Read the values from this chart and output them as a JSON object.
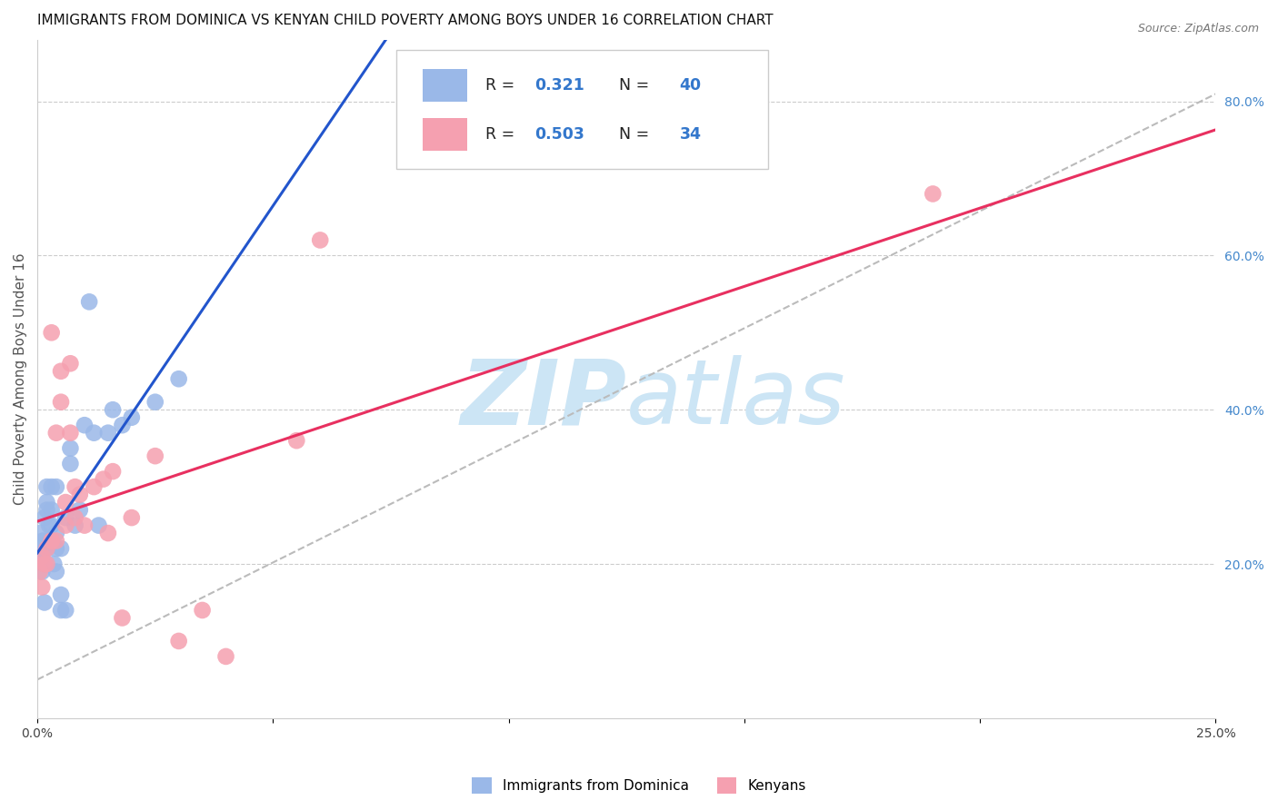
{
  "title": "IMMIGRANTS FROM DOMINICA VS KENYAN CHILD POVERTY AMONG BOYS UNDER 16 CORRELATION CHART",
  "source": "Source: ZipAtlas.com",
  "ylabel_left": "Child Poverty Among Boys Under 16",
  "xmin": 0.0,
  "xmax": 0.25,
  "ymin": 0.0,
  "ymax": 0.88,
  "xticks": [
    0.0,
    0.05,
    0.1,
    0.15,
    0.2,
    0.25
  ],
  "xticklabels": [
    "0.0%",
    "",
    "",
    "",
    "",
    "25.0%"
  ],
  "yticks_right": [
    0.2,
    0.4,
    0.6,
    0.8
  ],
  "ytick_right_labels": [
    "20.0%",
    "40.0%",
    "60.0%",
    "80.0%"
  ],
  "series1_color": "#9ab8e8",
  "series2_color": "#f5a0b0",
  "line1_color": "#2255cc",
  "line2_color": "#e83060",
  "watermark_color": "#cce5f5",
  "grid_color": "#cccccc",
  "background_color": "#ffffff",
  "title_fontsize": 11,
  "axis_label_fontsize": 11,
  "tick_fontsize": 10,
  "blue_x": [
    0.0005,
    0.0007,
    0.001,
    0.001,
    0.0012,
    0.0015,
    0.0015,
    0.002,
    0.002,
    0.002,
    0.002,
    0.0025,
    0.003,
    0.003,
    0.003,
    0.003,
    0.0035,
    0.004,
    0.004,
    0.004,
    0.004,
    0.005,
    0.005,
    0.005,
    0.006,
    0.006,
    0.007,
    0.007,
    0.008,
    0.009,
    0.01,
    0.011,
    0.012,
    0.013,
    0.015,
    0.016,
    0.018,
    0.02,
    0.025,
    0.03
  ],
  "blue_y": [
    0.24,
    0.22,
    0.19,
    0.21,
    0.23,
    0.26,
    0.15,
    0.27,
    0.28,
    0.3,
    0.22,
    0.25,
    0.23,
    0.25,
    0.27,
    0.3,
    0.2,
    0.19,
    0.22,
    0.24,
    0.3,
    0.14,
    0.16,
    0.22,
    0.26,
    0.14,
    0.33,
    0.35,
    0.25,
    0.27,
    0.38,
    0.54,
    0.37,
    0.25,
    0.37,
    0.4,
    0.38,
    0.39,
    0.41,
    0.44
  ],
  "pink_x": [
    0.0005,
    0.001,
    0.001,
    0.0015,
    0.002,
    0.002,
    0.003,
    0.003,
    0.003,
    0.004,
    0.004,
    0.005,
    0.005,
    0.006,
    0.006,
    0.007,
    0.007,
    0.008,
    0.008,
    0.009,
    0.01,
    0.012,
    0.014,
    0.015,
    0.016,
    0.018,
    0.02,
    0.025,
    0.03,
    0.035,
    0.04,
    0.055,
    0.06,
    0.19
  ],
  "pink_y": [
    0.19,
    0.17,
    0.21,
    0.2,
    0.22,
    0.2,
    0.23,
    0.5,
    0.23,
    0.37,
    0.23,
    0.41,
    0.45,
    0.25,
    0.28,
    0.37,
    0.46,
    0.26,
    0.3,
    0.29,
    0.25,
    0.3,
    0.31,
    0.24,
    0.32,
    0.13,
    0.26,
    0.34,
    0.1,
    0.14,
    0.08,
    0.36,
    0.62,
    0.68
  ]
}
